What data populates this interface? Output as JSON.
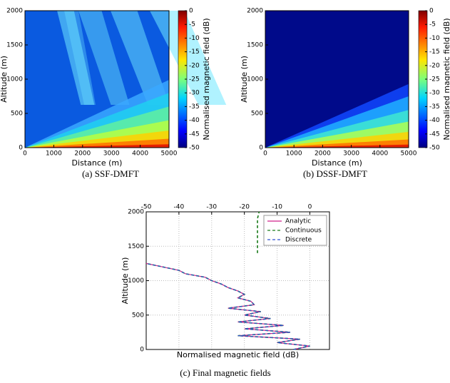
{
  "chart_data": [
    {
      "type": "heatmap",
      "caption": "(a) SSF-DMFT",
      "x_label": "Distance (m)",
      "y_label": "Altitude (m)",
      "xlim": [
        0,
        5000
      ],
      "xticks": [
        0,
        1000,
        2000,
        3000,
        4000,
        5000
      ],
      "ylim": [
        0,
        2000
      ],
      "yticks": [
        0,
        500,
        1000,
        1500,
        2000
      ],
      "colorbar": {
        "label": "Normalised magnetic field (dB)",
        "lim": [
          -50,
          0
        ],
        "ticks": [
          0,
          -5,
          -10,
          -15,
          -20,
          -25,
          -30,
          -35,
          -40,
          -45,
          -50
        ]
      }
    },
    {
      "type": "heatmap",
      "caption": "(b) DSSF-DMFT",
      "x_label": "Distance (m)",
      "y_label": "Altitude (m)",
      "xlim": [
        0,
        5000
      ],
      "xticks": [
        0,
        1000,
        2000,
        3000,
        4000,
        5000
      ],
      "ylim": [
        0,
        2000
      ],
      "yticks": [
        0,
        500,
        1000,
        1500,
        2000
      ],
      "colorbar": {
        "label": "Normalised magnetic field (dB)",
        "lim": [
          -50,
          0
        ],
        "ticks": [
          0,
          -5,
          -10,
          -15,
          -20,
          -25,
          -30,
          -35,
          -40,
          -45,
          -50
        ]
      }
    },
    {
      "type": "line",
      "caption": "(c) Final magnetic fields",
      "x_label": "Normalised magnetic field (dB)",
      "y_label": "Altitude (m)",
      "xlim": [
        -50,
        6
      ],
      "xticks": [
        -50,
        -40,
        -30,
        -20,
        -10,
        0
      ],
      "ylim": [
        0,
        2000
      ],
      "yticks": [
        0,
        500,
        1000,
        1500,
        2000
      ],
      "grid": true,
      "legend": "upper right",
      "y": [
        0,
        50,
        100,
        150,
        200,
        250,
        300,
        350,
        400,
        450,
        500,
        550,
        600,
        650,
        700,
        750,
        800,
        850,
        900,
        950,
        1000,
        1050,
        1100,
        1150,
        1200,
        1250,
        1300,
        1400,
        1500,
        1600,
        1700,
        1800,
        1900,
        2000
      ],
      "series": [
        {
          "name": "Analytic",
          "color": "#d0208a",
          "dash": false,
          "values": [
            -5,
            0,
            -10,
            -3,
            -22,
            -6,
            -20,
            -8,
            -22,
            -12,
            -20,
            -15,
            -25,
            -17,
            -18,
            -22,
            -20,
            -22,
            -25,
            -27,
            -30,
            -32,
            -38,
            -40,
            -45,
            -50,
            null,
            null,
            null,
            null,
            null,
            null,
            null,
            null
          ]
        },
        {
          "name": "Continuous",
          "color": "#1a7a1a",
          "dash": true,
          "values": [
            -5,
            0,
            -10,
            -3,
            -22,
            -6,
            -20,
            -8,
            -22,
            -12,
            -20,
            -15,
            -25,
            -17,
            -18,
            -22,
            -20,
            -22,
            -25,
            -27,
            -30,
            -32,
            -38,
            -40,
            -45,
            -50,
            null,
            -16,
            -16,
            -16,
            -16,
            -16,
            -16,
            -15.5
          ]
        },
        {
          "name": "Discrete",
          "color": "#3050d0",
          "dash": true,
          "values": [
            -5,
            0,
            -10,
            -3,
            -22,
            -6,
            -20,
            -8,
            -22,
            -12,
            -20,
            -15,
            -25,
            -17,
            -18,
            -22,
            -20,
            -22,
            -25,
            -27,
            -30,
            -32,
            -38,
            -40,
            -45,
            -50,
            null,
            null,
            null,
            null,
            null,
            null,
            null,
            null
          ]
        }
      ]
    }
  ]
}
